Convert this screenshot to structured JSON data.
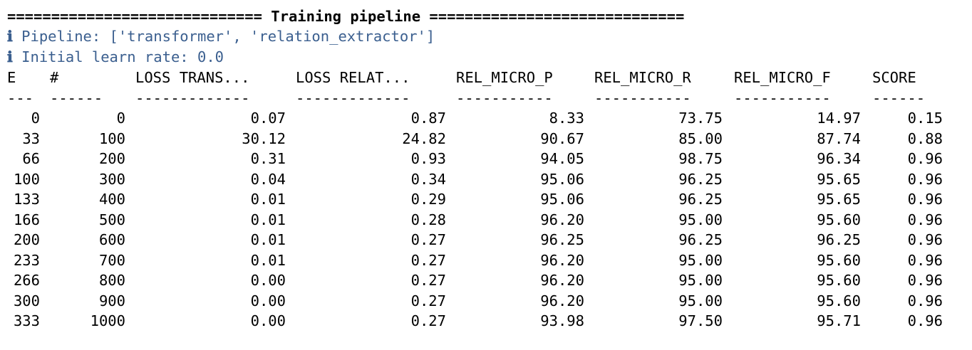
{
  "title_line": "============================= Training pipeline =============================",
  "info": [
    {
      "icon": "ℹ",
      "text": "Pipeline: ['transformer', 'relation_extractor']"
    },
    {
      "icon": "ℹ",
      "text": "Initial learn rate: 0.0"
    }
  ],
  "table": {
    "headers": [
      "E",
      "#",
      "LOSS TRANS...",
      "LOSS RELAT...",
      "REL_MICRO_P",
      "REL_MICRO_R",
      "REL_MICRO_F",
      "SCORE"
    ],
    "dashes": [
      "---",
      "------",
      "-------------",
      "-------------",
      "-----------",
      "-----------",
      "-----------",
      "------"
    ],
    "rows": [
      [
        "0",
        "0",
        "0.07",
        "0.87",
        "8.33",
        "73.75",
        "14.97",
        "0.15"
      ],
      [
        "33",
        "100",
        "30.12",
        "24.82",
        "90.67",
        "85.00",
        "87.74",
        "0.88"
      ],
      [
        "66",
        "200",
        "0.31",
        "0.93",
        "94.05",
        "98.75",
        "96.34",
        "0.96"
      ],
      [
        "100",
        "300",
        "0.04",
        "0.34",
        "95.06",
        "96.25",
        "95.65",
        "0.96"
      ],
      [
        "133",
        "400",
        "0.01",
        "0.29",
        "95.06",
        "96.25",
        "95.65",
        "0.96"
      ],
      [
        "166",
        "500",
        "0.01",
        "0.28",
        "96.20",
        "95.00",
        "95.60",
        "0.96"
      ],
      [
        "200",
        "600",
        "0.01",
        "0.27",
        "96.25",
        "96.25",
        "96.25",
        "0.96"
      ],
      [
        "233",
        "700",
        "0.01",
        "0.27",
        "96.20",
        "95.00",
        "95.60",
        "0.96"
      ],
      [
        "266",
        "800",
        "0.00",
        "0.27",
        "96.20",
        "95.00",
        "95.60",
        "0.96"
      ],
      [
        "300",
        "900",
        "0.00",
        "0.27",
        "96.20",
        "95.00",
        "95.60",
        "0.96"
      ],
      [
        "333",
        "1000",
        "0.00",
        "0.27",
        "93.98",
        "97.50",
        "95.71",
        "0.96"
      ]
    ]
  },
  "colors": {
    "info_text": "#3b5f8f",
    "text": "#000000",
    "background": "#ffffff"
  }
}
